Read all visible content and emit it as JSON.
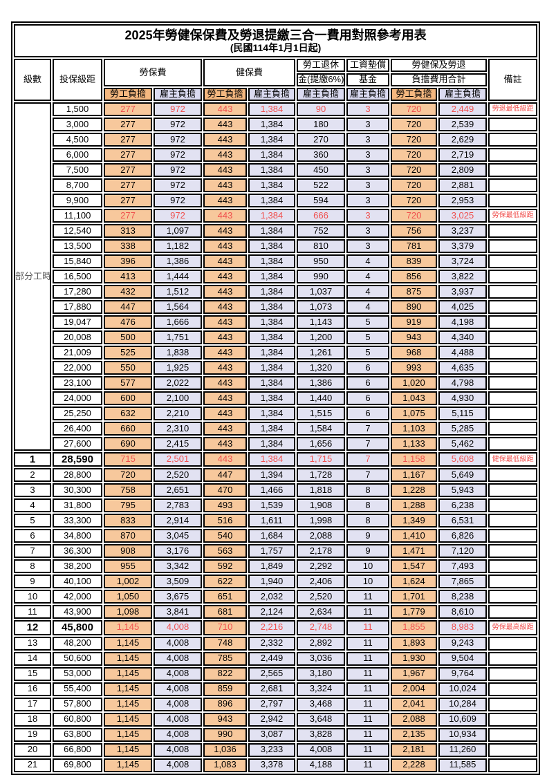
{
  "title": "2025年勞健保保費及勞退提繳三合一費用對照參考用表",
  "subtitle": "(民國114年1月1日起)",
  "colors": {
    "labor_share_bg": "#F7C89C",
    "employer_share_bg": "#E2E2F2",
    "highlight_red": "#F0504E",
    "border": "#000000"
  },
  "header": {
    "level": "級數",
    "bracket": "投保級距",
    "labor_insurance": "勞保費",
    "health_insurance": "健保費",
    "pension_line1": "勞工退休",
    "pension_line2": "金(提繳6%)",
    "wage_fund_line1": "工資墊償",
    "wage_fund_line2": "基金",
    "total_line1": "勞健保及勞退",
    "total_line2": "負擔費用合計",
    "remark": "備註",
    "labor_share": "勞工負擔",
    "employer_share": "雇主負擔"
  },
  "part_time_label": "部分工時",
  "chart_data": {
    "type": "table",
    "columns": [
      "級數",
      "投保級距",
      "勞保費-勞工負擔",
      "勞保費-雇主負擔",
      "健保費-勞工負擔",
      "健保費-雇主負擔",
      "勞工退休金(提繳6%)-雇主負擔",
      "工資墊償基金-雇主負擔",
      "合計-勞工負擔",
      "合計-雇主負擔",
      "備註"
    ]
  },
  "rows": [
    {
      "level": "",
      "bracket": "1,500",
      "values": [
        "277",
        "972",
        "443",
        "1,384",
        "90",
        "3",
        "720",
        "2,449"
      ],
      "remark": "勞退最低級距",
      "red": true,
      "emph": false
    },
    {
      "level": "",
      "bracket": "3,000",
      "values": [
        "277",
        "972",
        "443",
        "1,384",
        "180",
        "3",
        "720",
        "2,539"
      ],
      "remark": "",
      "red": false,
      "emph": false
    },
    {
      "level": "",
      "bracket": "4,500",
      "values": [
        "277",
        "972",
        "443",
        "1,384",
        "270",
        "3",
        "720",
        "2,629"
      ],
      "remark": "",
      "red": false,
      "emph": false
    },
    {
      "level": "",
      "bracket": "6,000",
      "values": [
        "277",
        "972",
        "443",
        "1,384",
        "360",
        "3",
        "720",
        "2,719"
      ],
      "remark": "",
      "red": false,
      "emph": false
    },
    {
      "level": "",
      "bracket": "7,500",
      "values": [
        "277",
        "972",
        "443",
        "1,384",
        "450",
        "3",
        "720",
        "2,809"
      ],
      "remark": "",
      "red": false,
      "emph": false
    },
    {
      "level": "",
      "bracket": "8,700",
      "values": [
        "277",
        "972",
        "443",
        "1,384",
        "522",
        "3",
        "720",
        "2,881"
      ],
      "remark": "",
      "red": false,
      "emph": false
    },
    {
      "level": "",
      "bracket": "9,900",
      "values": [
        "277",
        "972",
        "443",
        "1,384",
        "594",
        "3",
        "720",
        "2,953"
      ],
      "remark": "",
      "red": false,
      "emph": false
    },
    {
      "level": "",
      "bracket": "11,100",
      "values": [
        "277",
        "972",
        "443",
        "1,384",
        "666",
        "3",
        "720",
        "3,025"
      ],
      "remark": "勞保最低級距",
      "red": true,
      "emph": false
    },
    {
      "level": "",
      "bracket": "12,540",
      "values": [
        "313",
        "1,097",
        "443",
        "1,384",
        "752",
        "3",
        "756",
        "3,237"
      ],
      "remark": "",
      "red": false,
      "emph": false
    },
    {
      "level": "",
      "bracket": "13,500",
      "values": [
        "338",
        "1,182",
        "443",
        "1,384",
        "810",
        "3",
        "781",
        "3,379"
      ],
      "remark": "",
      "red": false,
      "emph": false
    },
    {
      "level": "",
      "bracket": "15,840",
      "values": [
        "396",
        "1,386",
        "443",
        "1,384",
        "950",
        "4",
        "839",
        "3,724"
      ],
      "remark": "",
      "red": false,
      "emph": false
    },
    {
      "level": "",
      "bracket": "16,500",
      "values": [
        "413",
        "1,444",
        "443",
        "1,384",
        "990",
        "4",
        "856",
        "3,822"
      ],
      "remark": "",
      "red": false,
      "emph": false
    },
    {
      "level": "",
      "bracket": "17,280",
      "values": [
        "432",
        "1,512",
        "443",
        "1,384",
        "1,037",
        "4",
        "875",
        "3,937"
      ],
      "remark": "",
      "red": false,
      "emph": false
    },
    {
      "level": "",
      "bracket": "17,880",
      "values": [
        "447",
        "1,564",
        "443",
        "1,384",
        "1,073",
        "4",
        "890",
        "4,025"
      ],
      "remark": "",
      "red": false,
      "emph": false
    },
    {
      "level": "",
      "bracket": "19,047",
      "values": [
        "476",
        "1,666",
        "443",
        "1,384",
        "1,143",
        "5",
        "919",
        "4,198"
      ],
      "remark": "",
      "red": false,
      "emph": false
    },
    {
      "level": "",
      "bracket": "20,008",
      "values": [
        "500",
        "1,751",
        "443",
        "1,384",
        "1,200",
        "5",
        "943",
        "4,340"
      ],
      "remark": "",
      "red": false,
      "emph": false
    },
    {
      "level": "",
      "bracket": "21,009",
      "values": [
        "525",
        "1,838",
        "443",
        "1,384",
        "1,261",
        "5",
        "968",
        "4,488"
      ],
      "remark": "",
      "red": false,
      "emph": false
    },
    {
      "level": "",
      "bracket": "22,000",
      "values": [
        "550",
        "1,925",
        "443",
        "1,384",
        "1,320",
        "6",
        "993",
        "4,635"
      ],
      "remark": "",
      "red": false,
      "emph": false
    },
    {
      "level": "",
      "bracket": "23,100",
      "values": [
        "577",
        "2,022",
        "443",
        "1,384",
        "1,386",
        "6",
        "1,020",
        "4,798"
      ],
      "remark": "",
      "red": false,
      "emph": false
    },
    {
      "level": "",
      "bracket": "24,000",
      "values": [
        "600",
        "2,100",
        "443",
        "1,384",
        "1,440",
        "6",
        "1,043",
        "4,930"
      ],
      "remark": "",
      "red": false,
      "emph": false
    },
    {
      "level": "",
      "bracket": "25,250",
      "values": [
        "632",
        "2,210",
        "443",
        "1,384",
        "1,515",
        "6",
        "1,075",
        "5,115"
      ],
      "remark": "",
      "red": false,
      "emph": false
    },
    {
      "level": "",
      "bracket": "26,400",
      "values": [
        "660",
        "2,310",
        "443",
        "1,384",
        "1,584",
        "7",
        "1,103",
        "5,285"
      ],
      "remark": "",
      "red": false,
      "emph": false
    },
    {
      "level": "",
      "bracket": "27,600",
      "values": [
        "690",
        "2,415",
        "443",
        "1,384",
        "1,656",
        "7",
        "1,133",
        "5,462"
      ],
      "remark": "",
      "red": false,
      "emph": false
    },
    {
      "level": "1",
      "bracket": "28,590",
      "values": [
        "715",
        "2,501",
        "443",
        "1,384",
        "1,715",
        "7",
        "1,158",
        "5,608"
      ],
      "remark": "健保最低級距",
      "red": true,
      "emph": true
    },
    {
      "level": "2",
      "bracket": "28,800",
      "values": [
        "720",
        "2,520",
        "447",
        "1,394",
        "1,728",
        "7",
        "1,167",
        "5,649"
      ],
      "remark": "",
      "red": false,
      "emph": false
    },
    {
      "level": "3",
      "bracket": "30,300",
      "values": [
        "758",
        "2,651",
        "470",
        "1,466",
        "1,818",
        "8",
        "1,228",
        "5,943"
      ],
      "remark": "",
      "red": false,
      "emph": false
    },
    {
      "level": "4",
      "bracket": "31,800",
      "values": [
        "795",
        "2,783",
        "493",
        "1,539",
        "1,908",
        "8",
        "1,288",
        "6,238"
      ],
      "remark": "",
      "red": false,
      "emph": false
    },
    {
      "level": "5",
      "bracket": "33,300",
      "values": [
        "833",
        "2,914",
        "516",
        "1,611",
        "1,998",
        "8",
        "1,349",
        "6,531"
      ],
      "remark": "",
      "red": false,
      "emph": false
    },
    {
      "level": "6",
      "bracket": "34,800",
      "values": [
        "870",
        "3,045",
        "540",
        "1,684",
        "2,088",
        "9",
        "1,410",
        "6,826"
      ],
      "remark": "",
      "red": false,
      "emph": false
    },
    {
      "level": "7",
      "bracket": "36,300",
      "values": [
        "908",
        "3,176",
        "563",
        "1,757",
        "2,178",
        "9",
        "1,471",
        "7,120"
      ],
      "remark": "",
      "red": false,
      "emph": false
    },
    {
      "level": "8",
      "bracket": "38,200",
      "values": [
        "955",
        "3,342",
        "592",
        "1,849",
        "2,292",
        "10",
        "1,547",
        "7,493"
      ],
      "remark": "",
      "red": false,
      "emph": false
    },
    {
      "level": "9",
      "bracket": "40,100",
      "values": [
        "1,002",
        "3,509",
        "622",
        "1,940",
        "2,406",
        "10",
        "1,624",
        "7,865"
      ],
      "remark": "",
      "red": false,
      "emph": false
    },
    {
      "level": "10",
      "bracket": "42,000",
      "values": [
        "1,050",
        "3,675",
        "651",
        "2,032",
        "2,520",
        "11",
        "1,701",
        "8,238"
      ],
      "remark": "",
      "red": false,
      "emph": false
    },
    {
      "level": "11",
      "bracket": "43,900",
      "values": [
        "1,098",
        "3,841",
        "681",
        "2,124",
        "2,634",
        "11",
        "1,779",
        "8,610"
      ],
      "remark": "",
      "red": false,
      "emph": false
    },
    {
      "level": "12",
      "bracket": "45,800",
      "values": [
        "1,145",
        "4,008",
        "710",
        "2,216",
        "2,748",
        "11",
        "1,855",
        "8,983"
      ],
      "remark": "勞保最高級距",
      "red": true,
      "emph": true
    },
    {
      "level": "13",
      "bracket": "48,200",
      "values": [
        "1,145",
        "4,008",
        "748",
        "2,332",
        "2,892",
        "11",
        "1,893",
        "9,243"
      ],
      "remark": "",
      "red": false,
      "emph": false
    },
    {
      "level": "14",
      "bracket": "50,600",
      "values": [
        "1,145",
        "4,008",
        "785",
        "2,449",
        "3,036",
        "11",
        "1,930",
        "9,504"
      ],
      "remark": "",
      "red": false,
      "emph": false
    },
    {
      "level": "15",
      "bracket": "53,000",
      "values": [
        "1,145",
        "4,008",
        "822",
        "2,565",
        "3,180",
        "11",
        "1,967",
        "9,764"
      ],
      "remark": "",
      "red": false,
      "emph": false
    },
    {
      "level": "16",
      "bracket": "55,400",
      "values": [
        "1,145",
        "4,008",
        "859",
        "2,681",
        "3,324",
        "11",
        "2,004",
        "10,024"
      ],
      "remark": "",
      "red": false,
      "emph": false
    },
    {
      "level": "17",
      "bracket": "57,800",
      "values": [
        "1,145",
        "4,008",
        "896",
        "2,797",
        "3,468",
        "11",
        "2,041",
        "10,284"
      ],
      "remark": "",
      "red": false,
      "emph": false
    },
    {
      "level": "18",
      "bracket": "60,800",
      "values": [
        "1,145",
        "4,008",
        "943",
        "2,942",
        "3,648",
        "11",
        "2,088",
        "10,609"
      ],
      "remark": "",
      "red": false,
      "emph": false
    },
    {
      "level": "19",
      "bracket": "63,800",
      "values": [
        "1,145",
        "4,008",
        "990",
        "3,087",
        "3,828",
        "11",
        "2,135",
        "10,934"
      ],
      "remark": "",
      "red": false,
      "emph": false
    },
    {
      "level": "20",
      "bracket": "66,800",
      "values": [
        "1,145",
        "4,008",
        "1,036",
        "3,233",
        "4,008",
        "11",
        "2,181",
        "11,260"
      ],
      "remark": "",
      "red": false,
      "emph": false
    },
    {
      "level": "21",
      "bracket": "69,800",
      "values": [
        "1,145",
        "4,008",
        "1,083",
        "3,378",
        "4,188",
        "11",
        "2,228",
        "11,585"
      ],
      "remark": "",
      "red": false,
      "emph": false
    }
  ]
}
